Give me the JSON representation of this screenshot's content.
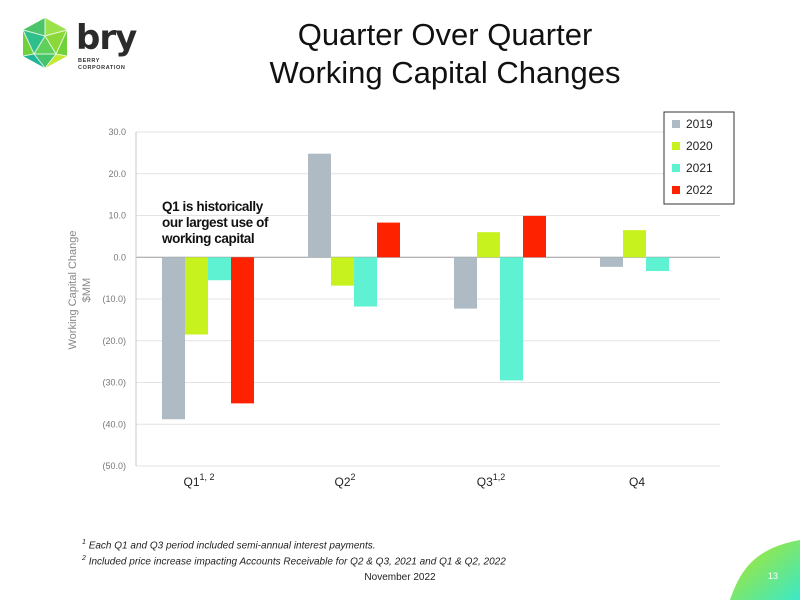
{
  "logo": {
    "word": "bry",
    "sub1": "BERRY",
    "sub2": "CORPORATION"
  },
  "title": {
    "line1": "Quarter Over Quarter",
    "line2": "Working Capital Changes"
  },
  "note": {
    "line1": "Q1 is historically",
    "line2": "our largest use of",
    "line3": "working capital"
  },
  "footnotes": {
    "f1_mark": "1",
    "f1_text": "Each Q1 and Q3 period included semi-annual interest payments.",
    "f2_mark": "2",
    "f2_text": "Included price increase impacting Accounts Receivable for Q2 & Q3, 2021 and Q1 & Q2, 2022"
  },
  "date": "November 2022",
  "page_number": "13",
  "colors": {
    "accent_green": "#b5e61d",
    "accent_teal": "#3be8c8"
  },
  "chart_data": {
    "type": "bar",
    "title": "",
    "ylabel_line1": "Working Capital Change",
    "ylabel_line2": "$MM",
    "ylim": [
      -50,
      30
    ],
    "yticks": [
      30,
      20,
      10,
      0,
      -10,
      -20,
      -30,
      -40,
      -50
    ],
    "ytick_labels": [
      "30.0",
      "20.0",
      "10.0",
      "0.0",
      "(10.0)",
      "(20.0)",
      "(30.0)",
      "(40.0)",
      "(50.0)"
    ],
    "grid": true,
    "legend_position": "top-right",
    "categories": [
      {
        "label": "Q1",
        "sup": "1, 2"
      },
      {
        "label": "Q2",
        "sup": "2"
      },
      {
        "label": "Q3",
        "sup": "1,2"
      },
      {
        "label": "Q4",
        "sup": ""
      }
    ],
    "series": [
      {
        "name": "2019",
        "color": "#aebbc4",
        "values": [
          -38.8,
          24.8,
          -12.3,
          -2.3
        ]
      },
      {
        "name": "2020",
        "color": "#c8f21e",
        "values": [
          -18.5,
          -6.8,
          6.0,
          6.5
        ]
      },
      {
        "name": "2021",
        "color": "#5ef2d2",
        "values": [
          -5.5,
          -11.8,
          -29.5,
          -3.3
        ]
      },
      {
        "name": "2022",
        "color": "#ff2200",
        "values": [
          -35.0,
          8.3,
          9.9,
          null
        ]
      }
    ]
  }
}
